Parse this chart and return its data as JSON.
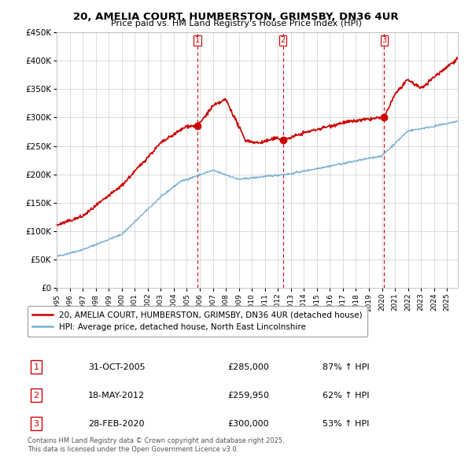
{
  "title": "20, AMELIA COURT, HUMBERSTON, GRIMSBY, DN36 4UR",
  "subtitle": "Price paid vs. HM Land Registry's House Price Index (HPI)",
  "ylim": [
    0,
    450000
  ],
  "xlim_start": 1995.0,
  "xlim_end": 2025.83,
  "sale_dates": [
    2005.83,
    2012.38,
    2020.17
  ],
  "sale_prices": [
    285000,
    259950,
    300000
  ],
  "sale_labels": [
    "1",
    "2",
    "3"
  ],
  "sale_date_strs": [
    "31-OCT-2005",
    "18-MAY-2012",
    "28-FEB-2020"
  ],
  "sale_pct": [
    "87% ↑ HPI",
    "62% ↑ HPI",
    "53% ↑ HPI"
  ],
  "property_color": "#cc0000",
  "hpi_color": "#7ab0d4",
  "legend_property": "20, AMELIA COURT, HUMBERSTON, GRIMSBY, DN36 4UR (detached house)",
  "legend_hpi": "HPI: Average price, detached house, North East Lincolnshire",
  "footer": "Contains HM Land Registry data © Crown copyright and database right 2025.\nThis data is licensed under the Open Government Licence v3.0.",
  "background_color": "#ffffff",
  "grid_color": "#cccccc"
}
